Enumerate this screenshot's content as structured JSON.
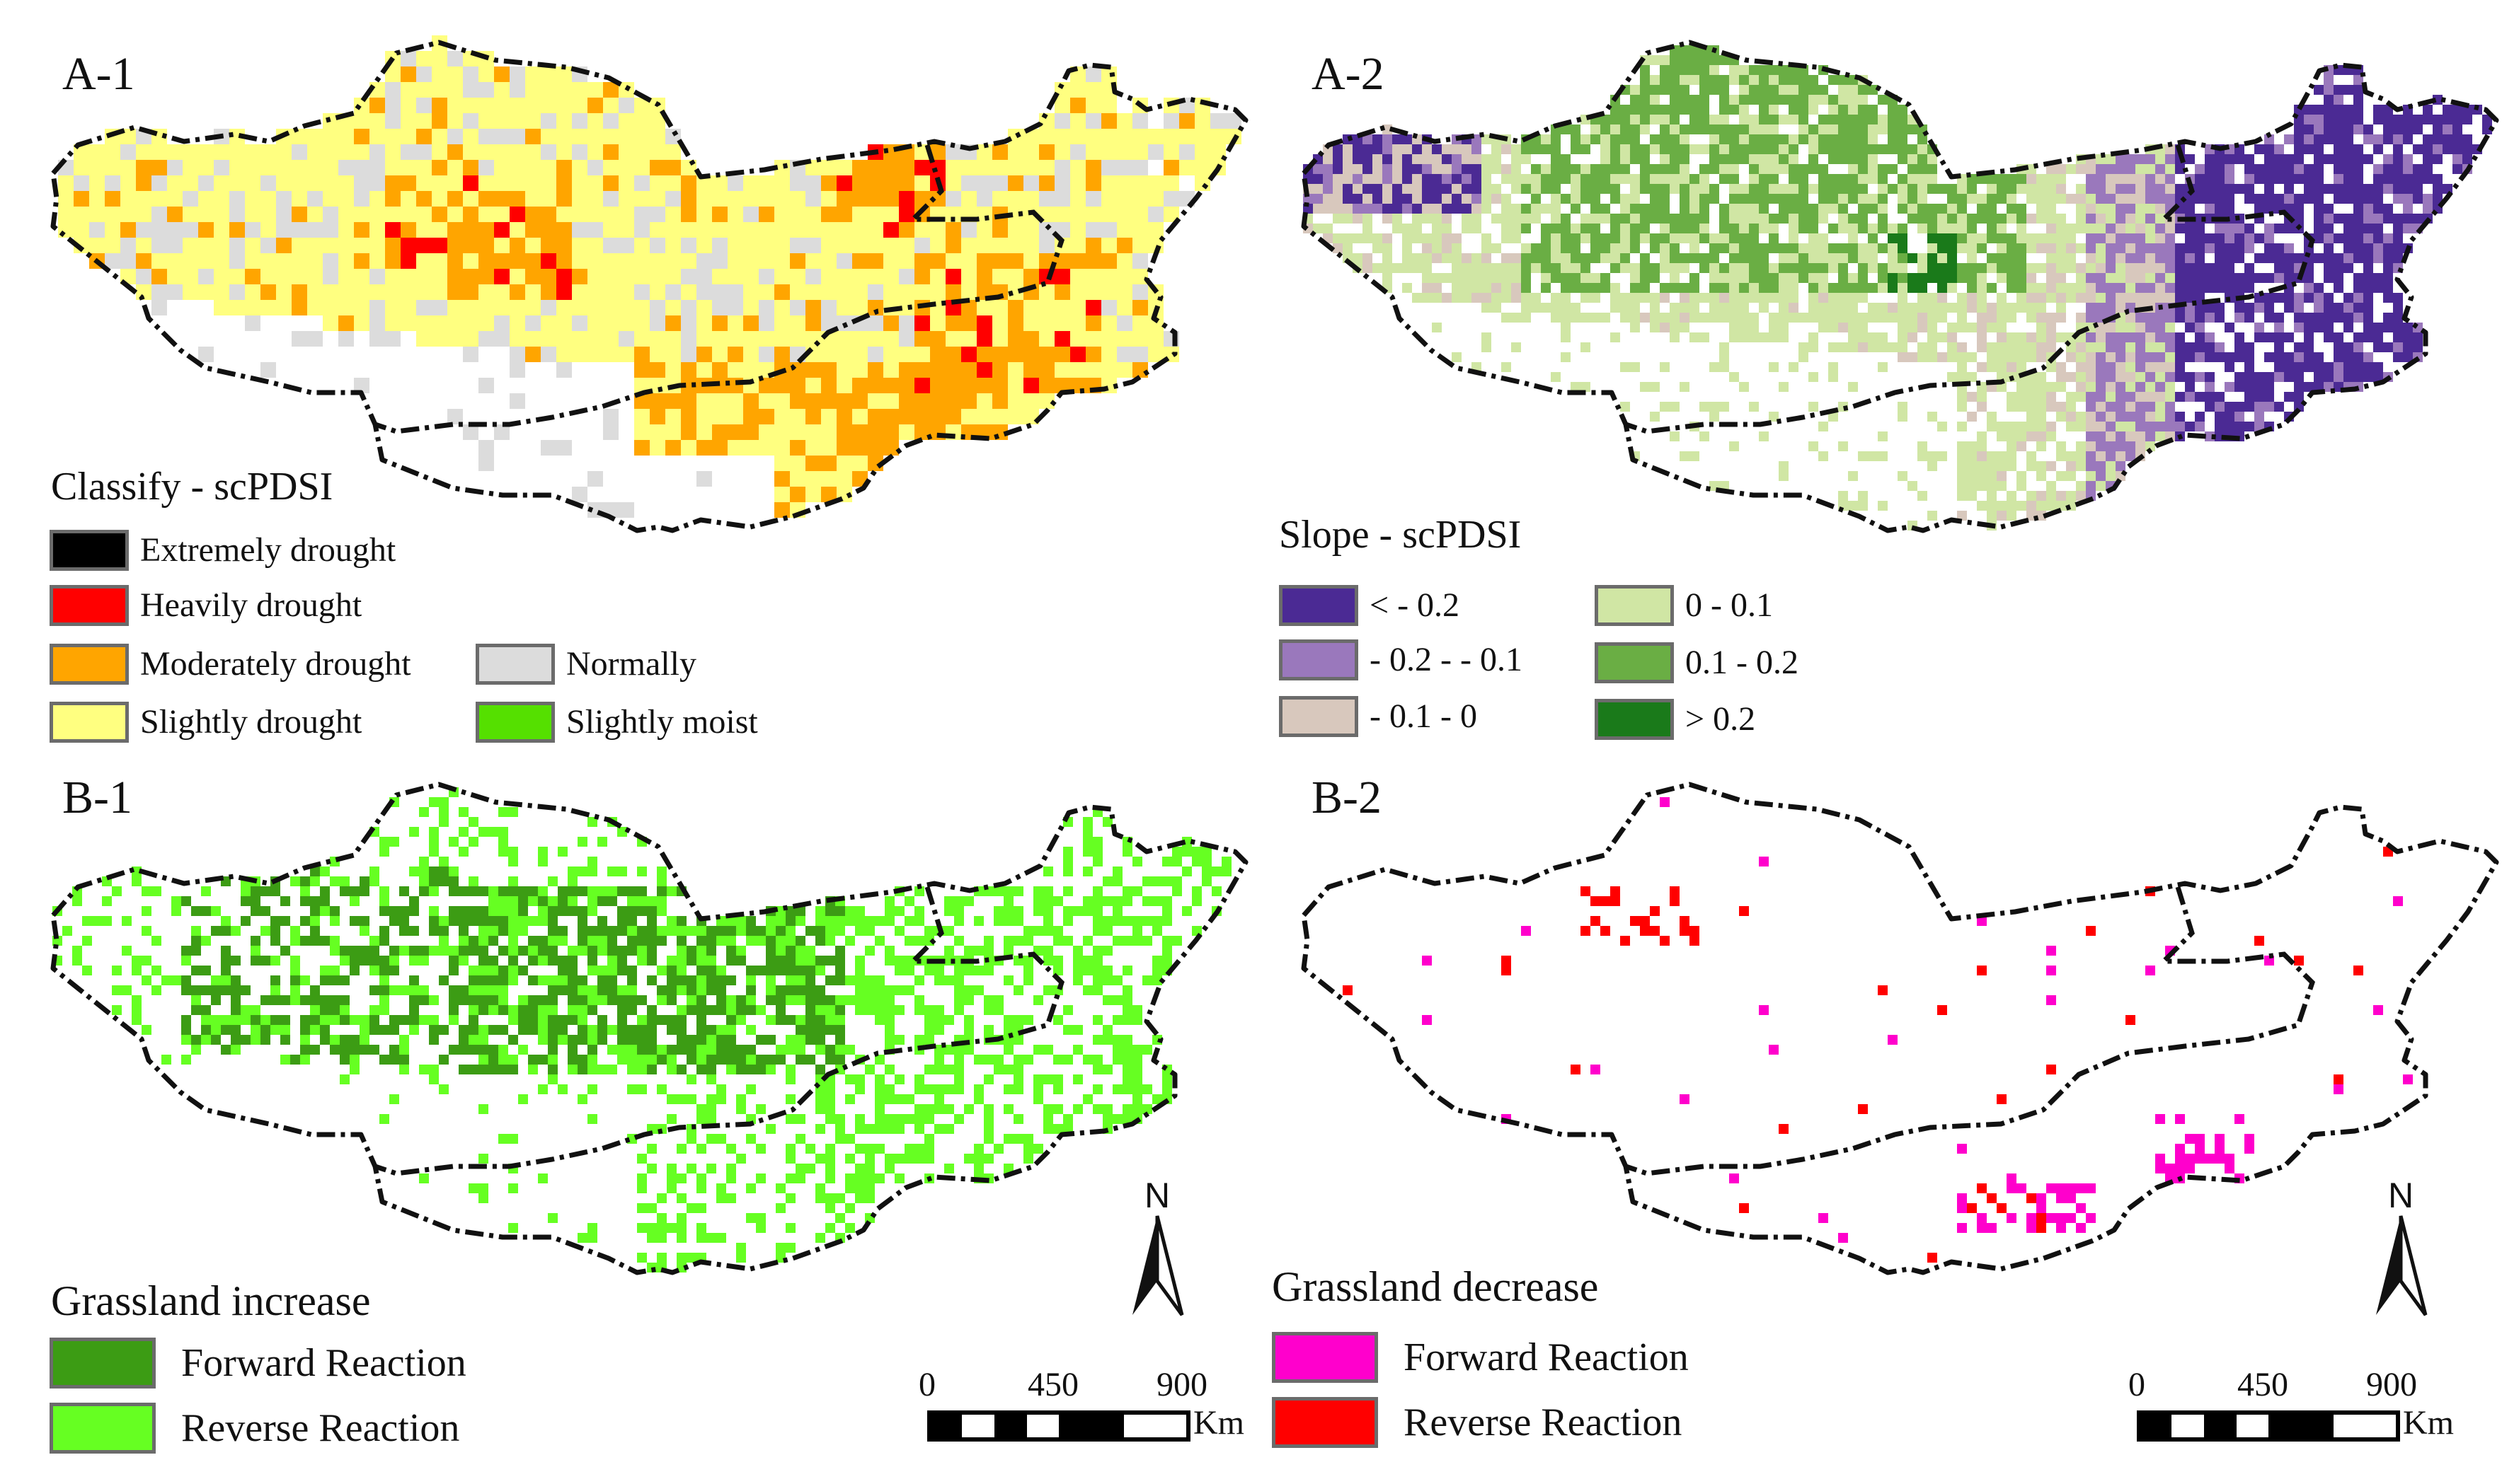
{
  "panels": {
    "a1": {
      "label": "A-1",
      "legend_title": "Classify - scPDSI",
      "legend": [
        {
          "label": "Extremely drought",
          "color": "#000000"
        },
        {
          "label": "Heavily drought",
          "color": "#ff0000"
        },
        {
          "label": "Moderately drought",
          "color": "#ffa500"
        },
        {
          "label": "Slightly drought",
          "color": "#ffff80"
        },
        {
          "label": "Normally",
          "color": "#dcdcdc"
        },
        {
          "label": "Slightly moist",
          "color": "#55e000"
        }
      ]
    },
    "a2": {
      "label": "A-2",
      "legend_title": "Slope - scPDSI",
      "legend": [
        {
          "label": "<  - 0.2",
          "color": "#4b2a94"
        },
        {
          "label": "- 0.2 -  - 0.1",
          "color": "#9a78bc"
        },
        {
          "label": "- 0.1 - 0",
          "color": "#d8c8bd"
        },
        {
          "label": "0 - 0.1",
          "color": "#d0e6a4"
        },
        {
          "label": "0.1 - 0.2",
          "color": "#6aae44"
        },
        {
          "label": "> 0.2",
          "color": "#1a7a1a"
        }
      ]
    },
    "b1": {
      "label": "B-1",
      "legend_title": "Grassland increase",
      "legend": [
        {
          "label": "Forward Reaction",
          "color": "#3c9c14"
        },
        {
          "label": "Reverse Reaction",
          "color": "#66ff22"
        }
      ],
      "north_label": "N",
      "scale": {
        "ticks": [
          "0",
          "450",
          "900"
        ],
        "unit": "Km"
      }
    },
    "b2": {
      "label": "B-2",
      "legend_title": "Grassland decrease",
      "legend": [
        {
          "label": "Forward Reaction",
          "color": "#ff00cc"
        },
        {
          "label": "Reverse Reaction",
          "color": "#ff0000"
        }
      ],
      "north_label": "N",
      "scale": {
        "ticks": [
          "0",
          "450",
          "900"
        ],
        "unit": "Km"
      }
    }
  }
}
